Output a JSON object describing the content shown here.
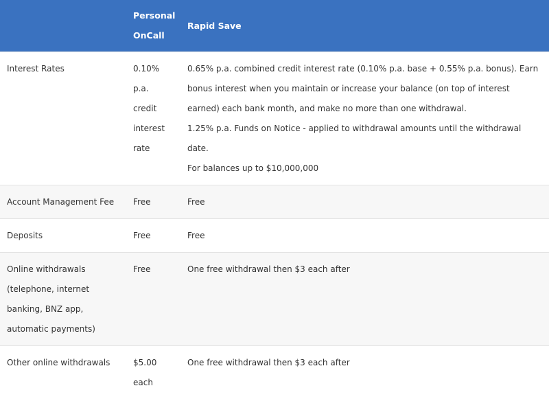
{
  "header": {
    "col1": "",
    "col2": "Personal OnCall",
    "col3": "Rapid Save"
  },
  "colors": {
    "header_bg": "#3a72c0",
    "row_alt": "#f7f7f7"
  },
  "rows": [
    {
      "label": "Interest Rates",
      "oncall": "0.10% p.a. credit interest rate",
      "rapid": [
        "0.65% p.a. combined credit interest rate (0.10% p.a. base + 0.55% p.a. bonus). Earn bonus interest when you maintain or increase your balance (on top of interest earned) each bank month, and make no more than one withdrawal.",
        "1.25% p.a. Funds on Notice - applied to withdrawal amounts until the withdrawal date.",
        "For balances up to $10,000,000"
      ]
    },
    {
      "label": "Account Management Fee",
      "oncall": "Free",
      "rapid": [
        "Free"
      ]
    },
    {
      "label": "Deposits",
      "oncall": "Free",
      "rapid": [
        "Free"
      ]
    },
    {
      "label": "Online withdrawals (telephone, internet banking, BNZ app, automatic payments)",
      "oncall": "Free",
      "rapid": [
        "One free withdrawal then $3 each after"
      ]
    },
    {
      "label": "Other online withdrawals",
      "oncall": "$5.00 each",
      "rapid": [
        "One free withdrawal then $3 each after"
      ]
    }
  ]
}
